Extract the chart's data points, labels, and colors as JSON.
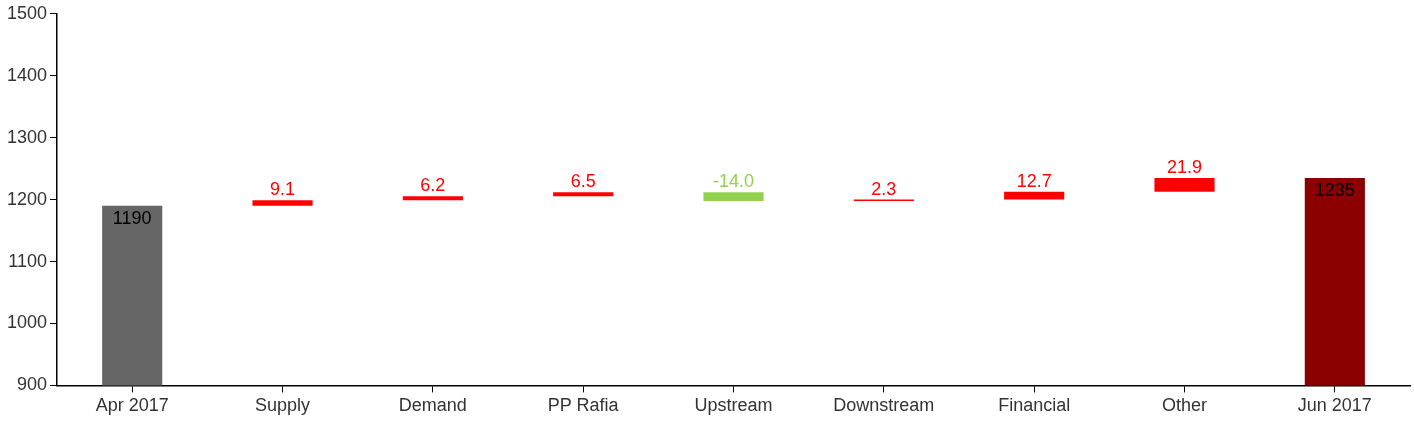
{
  "chart_data": {
    "type": "bar",
    "categories": [
      "Apr 2017",
      "Supply",
      "Demand",
      "PP Rafia",
      "Upstream",
      "Downstream",
      "Financial",
      "Other",
      "Jun 2017"
    ],
    "values": [
      1190,
      9.1,
      6.2,
      6.5,
      -14.0,
      2.3,
      12.7,
      21.9,
      1235
    ],
    "base": [
      null,
      1190,
      1199.1,
      1205.3,
      1211.8,
      1197.8,
      1200.1,
      1212.8,
      null
    ],
    "colors": [
      "#666666",
      "#ff0000",
      "#ff0000",
      "#ff0000",
      "#92d050",
      "#ff0000",
      "#ff0000",
      "#ff0000",
      "#8b0000"
    ],
    "value_labels": [
      "1190",
      "9.1",
      "6.2",
      "6.5",
      "-14.0",
      "2.3",
      "12.7",
      "21.9",
      "1235"
    ],
    "ylim": [
      900,
      1500
    ],
    "yticks": [
      900,
      1000,
      1100,
      1200,
      1300,
      1400,
      1500
    ],
    "grid": false,
    "legend": false
  }
}
